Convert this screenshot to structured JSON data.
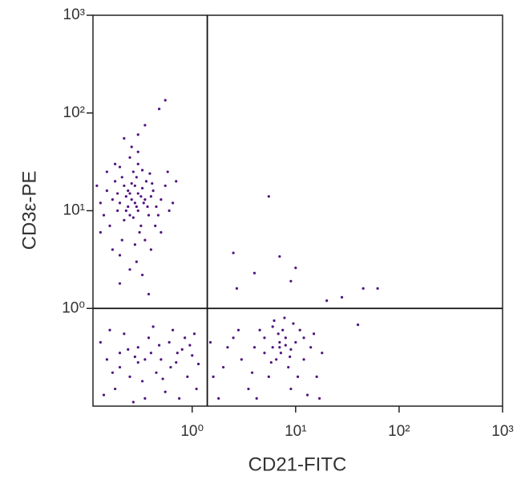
{
  "chart_data": {
    "type": "scatter",
    "xlabel": "CD21-FITC",
    "ylabel": "CD3ε-PE",
    "xlog": true,
    "ylog": true,
    "xlim": [
      0.11,
      1000
    ],
    "ylim": [
      0.1,
      1000
    ],
    "xticks": [
      {
        "value": 1,
        "label": "10⁰"
      },
      {
        "value": 10,
        "label": "10¹"
      },
      {
        "value": 100,
        "label": "10²"
      },
      {
        "value": 1000,
        "label": "10³"
      }
    ],
    "yticks": [
      {
        "value": 1,
        "label": "10⁰"
      },
      {
        "value": 10,
        "label": "10¹"
      },
      {
        "value": 100,
        "label": "10²"
      },
      {
        "value": 1000,
        "label": "10³"
      }
    ],
    "gates": {
      "x": 1.4,
      "y": 1
    },
    "color": "#50137e",
    "x": [
      0.2,
      0.25,
      0.3,
      0.28,
      0.22,
      0.35,
      0.18,
      0.32,
      0.27,
      0.24,
      0.4,
      0.15,
      0.3,
      0.21,
      0.38,
      0.26,
      0.33,
      0.19,
      0.29,
      0.23,
      0.45,
      0.14,
      0.36,
      0.31,
      0.17,
      0.42,
      0.27,
      0.25,
      0.2,
      0.34,
      0.22,
      0.5,
      0.13,
      0.3,
      0.28,
      0.16,
      0.39,
      0.24,
      0.47,
      0.29,
      0.2,
      0.35,
      0.18,
      0.26,
      0.55,
      0.23,
      0.32,
      0.21,
      0.37,
      0.26,
      0.3,
      0.25,
      0.33,
      0.15,
      0.44,
      0.19,
      0.28,
      0.6,
      0.12,
      0.41,
      0.55,
      0.48,
      0.35,
      0.3,
      0.22,
      0.29,
      0.4,
      0.17,
      0.25,
      0.33,
      0.2,
      0.38,
      0.13,
      0.5,
      0.65,
      0.7,
      0.58,
      0.15,
      0.2,
      0.3,
      0.25,
      0.4,
      0.5,
      0.6,
      0.18,
      0.35,
      0.45,
      0.7,
      0.8,
      0.9,
      1.0,
      1.1,
      0.13,
      0.22,
      0.28,
      0.33,
      0.55,
      0.65,
      0.75,
      0.85,
      0.17,
      0.38,
      0.48,
      0.27,
      0.62,
      0.95,
      1.15,
      0.14,
      0.42,
      0.24,
      0.52,
      0.3,
      0.2,
      0.72,
      0.16,
      1.05,
      0.35,
      6,
      7,
      8,
      5,
      9,
      7.5,
      6.5,
      10,
      12,
      4,
      3,
      2,
      1.6,
      2.5,
      3.5,
      5.5,
      8.5,
      11,
      14,
      16,
      18,
      4.5,
      6.2,
      7.8,
      9.5,
      1.8,
      2.2,
      13,
      5,
      6.8,
      7.2,
      8,
      3.8,
      2.8,
      10.5,
      15,
      4.2,
      9,
      6,
      1.5,
      17,
      12,
      5.8,
      7,
      8.8,
      5.5,
      2.5,
      7,
      10,
      45,
      62,
      2.7,
      40,
      20,
      28,
      4,
      9
    ],
    "values": [
      12,
      15,
      10,
      18,
      8,
      13,
      20,
      7,
      25,
      11,
      14,
      16,
      30,
      5,
      9,
      13,
      17,
      10,
      22,
      14,
      11,
      9,
      20,
      6,
      13,
      16,
      8.5,
      35,
      28,
      12,
      18,
      13,
      12,
      40,
      4.5,
      7,
      24,
      16,
      9,
      11,
      3.5,
      5,
      30,
      45,
      18,
      10,
      14,
      22,
      11,
      19,
      15,
      9,
      26,
      25,
      7,
      15,
      12,
      10,
      18,
      19,
      135,
      110,
      75,
      60,
      55,
      3,
      4,
      4,
      2.5,
      2.2,
      1.8,
      1.4,
      6,
      6,
      12,
      20,
      25,
      0.3,
      0.25,
      0.4,
      0.2,
      0.35,
      0.3,
      0.45,
      0.15,
      0.12,
      0.22,
      0.28,
      0.38,
      0.2,
      0.33,
      0.15,
      0.45,
      0.55,
      0.32,
      0.18,
      0.14,
      0.6,
      0.12,
      0.5,
      0.22,
      0.5,
      0.42,
      0.11,
      0.25,
      0.42,
      0.27,
      0.13,
      0.65,
      0.38,
      0.19,
      0.28,
      0.35,
      0.35,
      0.6,
      0.55,
      0.3,
      0.4,
      0.45,
      0.5,
      0.35,
      0.38,
      0.6,
      0.3,
      0.45,
      0.3,
      0.4,
      0.3,
      0.25,
      0.2,
      0.5,
      0.15,
      0.2,
      0.25,
      0.6,
      0.4,
      0.2,
      0.35,
      0.6,
      0.75,
      0.8,
      0.7,
      0.12,
      0.4,
      0.13,
      0.5,
      0.55,
      0.35,
      0.42,
      0.22,
      0.6,
      0.2,
      0.55,
      0.12,
      0.15,
      0.65,
      0.45,
      0.12,
      0.5,
      0.28,
      0.4,
      0.32,
      14,
      3.7,
      3.4,
      2.6,
      1.6,
      1.6,
      1.6,
      0.68,
      1.2,
      1.3,
      2.3,
      1.9
    ]
  }
}
